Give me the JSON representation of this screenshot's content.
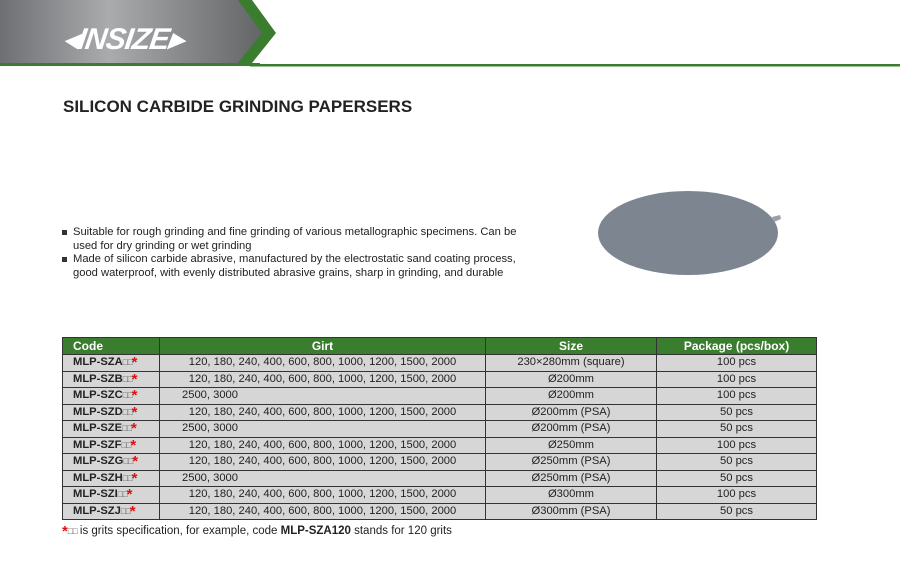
{
  "brand": {
    "logo_text": "INSIZE",
    "accent": "#3b7d2e"
  },
  "title": "SILICON CARBIDE GRINDING PAPERSERS",
  "bullets": [
    "Suitable for rough grinding and fine grinding of various metallographic specimens. Can be used for dry grinding or wet grinding",
    "Made of silicon carbide abrasive, manufactured by the electrostatic sand coating process, good waterproof, with evenly distributed abrasive grains, sharp in grinding, and durable"
  ],
  "table": {
    "headers": [
      "Code",
      "Girt",
      "Size",
      "Package (pcs/box)"
    ],
    "placeholder": "□□",
    "star": "*",
    "rows": [
      {
        "code": "MLP-SZA",
        "girt": "120, 180, 240, 400, 600, 800, 1000, 1200, 1500, 2000",
        "size": "230×280mm (square)",
        "pkg": "100 pcs"
      },
      {
        "code": "MLP-SZB",
        "girt": "120, 180, 240, 400, 600, 800, 1000, 1200, 1500, 2000",
        "size": "Ø200mm",
        "pkg": "100 pcs"
      },
      {
        "code": "MLP-SZC",
        "girt": "2500, 3000",
        "size": "Ø200mm",
        "pkg": "100 pcs"
      },
      {
        "code": "MLP-SZD",
        "girt": "120, 180, 240, 400, 600, 800, 1000, 1200, 1500, 2000",
        "size": "Ø200mm (PSA)",
        "pkg": "50 pcs"
      },
      {
        "code": "MLP-SZE",
        "girt": "2500, 3000",
        "size": "Ø200mm (PSA)",
        "pkg": "50 pcs"
      },
      {
        "code": "MLP-SZF",
        "girt": "120, 180, 240, 400, 600, 800, 1000, 1200, 1500, 2000",
        "size": "Ø250mm",
        "pkg": "100 pcs"
      },
      {
        "code": "MLP-SZG",
        "girt": "120, 180, 240, 400, 600, 800, 1000, 1200, 1500, 2000",
        "size": "Ø250mm (PSA)",
        "pkg": "50 pcs"
      },
      {
        "code": "MLP-SZH",
        "girt": "2500, 3000",
        "size": "Ø250mm (PSA)",
        "pkg": "50 pcs"
      },
      {
        "code": "MLP-SZI",
        "girt": "120, 180, 240, 400, 600, 800, 1000, 1200, 1500, 2000",
        "size": "Ø300mm",
        "pkg": "100 pcs"
      },
      {
        "code": "MLP-SZJ",
        "girt": "120, 180, 240, 400, 600, 800, 1000, 1200, 1500, 2000",
        "size": "Ø300mm (PSA)",
        "pkg": "50 pcs"
      }
    ]
  },
  "note": {
    "star": "*",
    "placeholder": "□□",
    "text1": " is grits specification, for example, code ",
    "code": "MLP-SZA120",
    "text2": " stands for 120 grits"
  }
}
